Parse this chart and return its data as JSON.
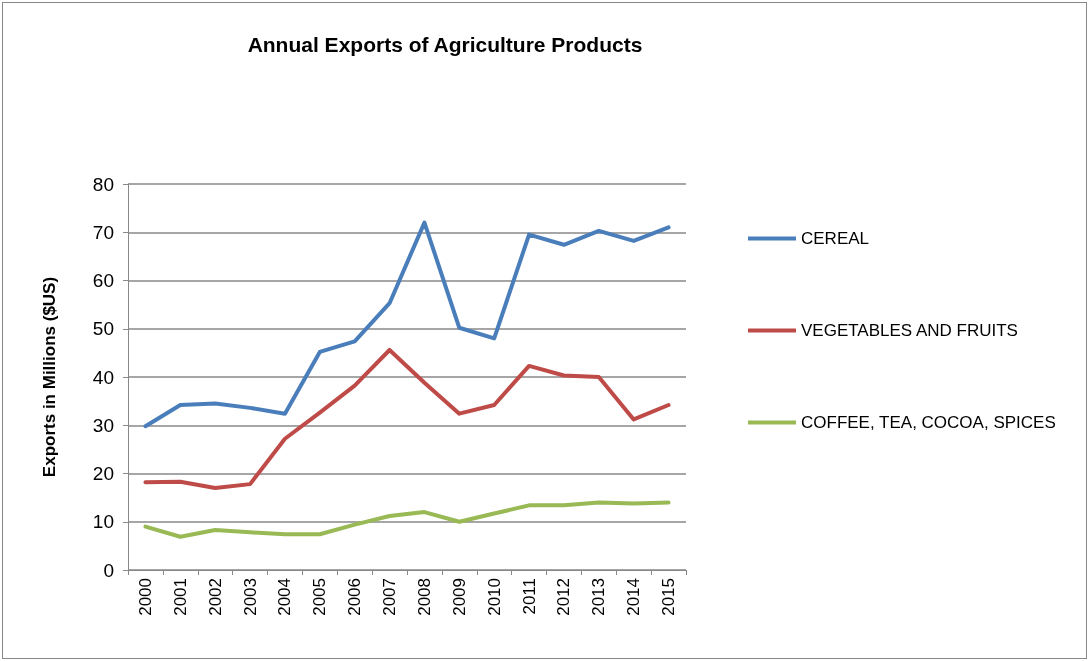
{
  "chart_data": {
    "type": "line",
    "title": "Annual Exports of Agriculture Products",
    "ylabel": "Exports in Millions ($US)",
    "categories": [
      "2000",
      "2001",
      "2002",
      "2003",
      "2004",
      "2005",
      "2006",
      "2007",
      "2008",
      "2009",
      "2010",
      "2011",
      "2012",
      "2013",
      "2014",
      "2015"
    ],
    "series": [
      {
        "name": "CEREAL",
        "color": "#4a7ebb",
        "values": [
          29.8,
          34.2,
          34.5,
          33.6,
          32.4,
          45.2,
          47.4,
          55.3,
          72,
          50.2,
          48,
          69.5,
          67.4,
          70.3,
          68.2,
          71
        ]
      },
      {
        "name": "VEGETABLES AND FRUITS",
        "color": "#be4b48",
        "values": [
          18.2,
          18.3,
          17,
          17.8,
          27.2,
          32.6,
          38.2,
          45.6,
          38.8,
          32.4,
          34.2,
          42.3,
          40.3,
          40,
          31.2,
          34.2
        ]
      },
      {
        "name": "COFFEE, TEA, COCOA, SPICES",
        "color": "#98b954",
        "values": [
          9,
          6.9,
          8.3,
          7.8,
          7.4,
          7.4,
          9.4,
          11.2,
          12,
          10,
          11.7,
          13.4,
          13.4,
          14,
          13.8,
          14
        ]
      }
    ],
    "ylim": [
      0,
      80
    ],
    "yticks": [
      0,
      10,
      20,
      30,
      40,
      50,
      60,
      70,
      80
    ],
    "grid": "y",
    "legend": "right",
    "marker": "none",
    "line_style": "solid"
  }
}
